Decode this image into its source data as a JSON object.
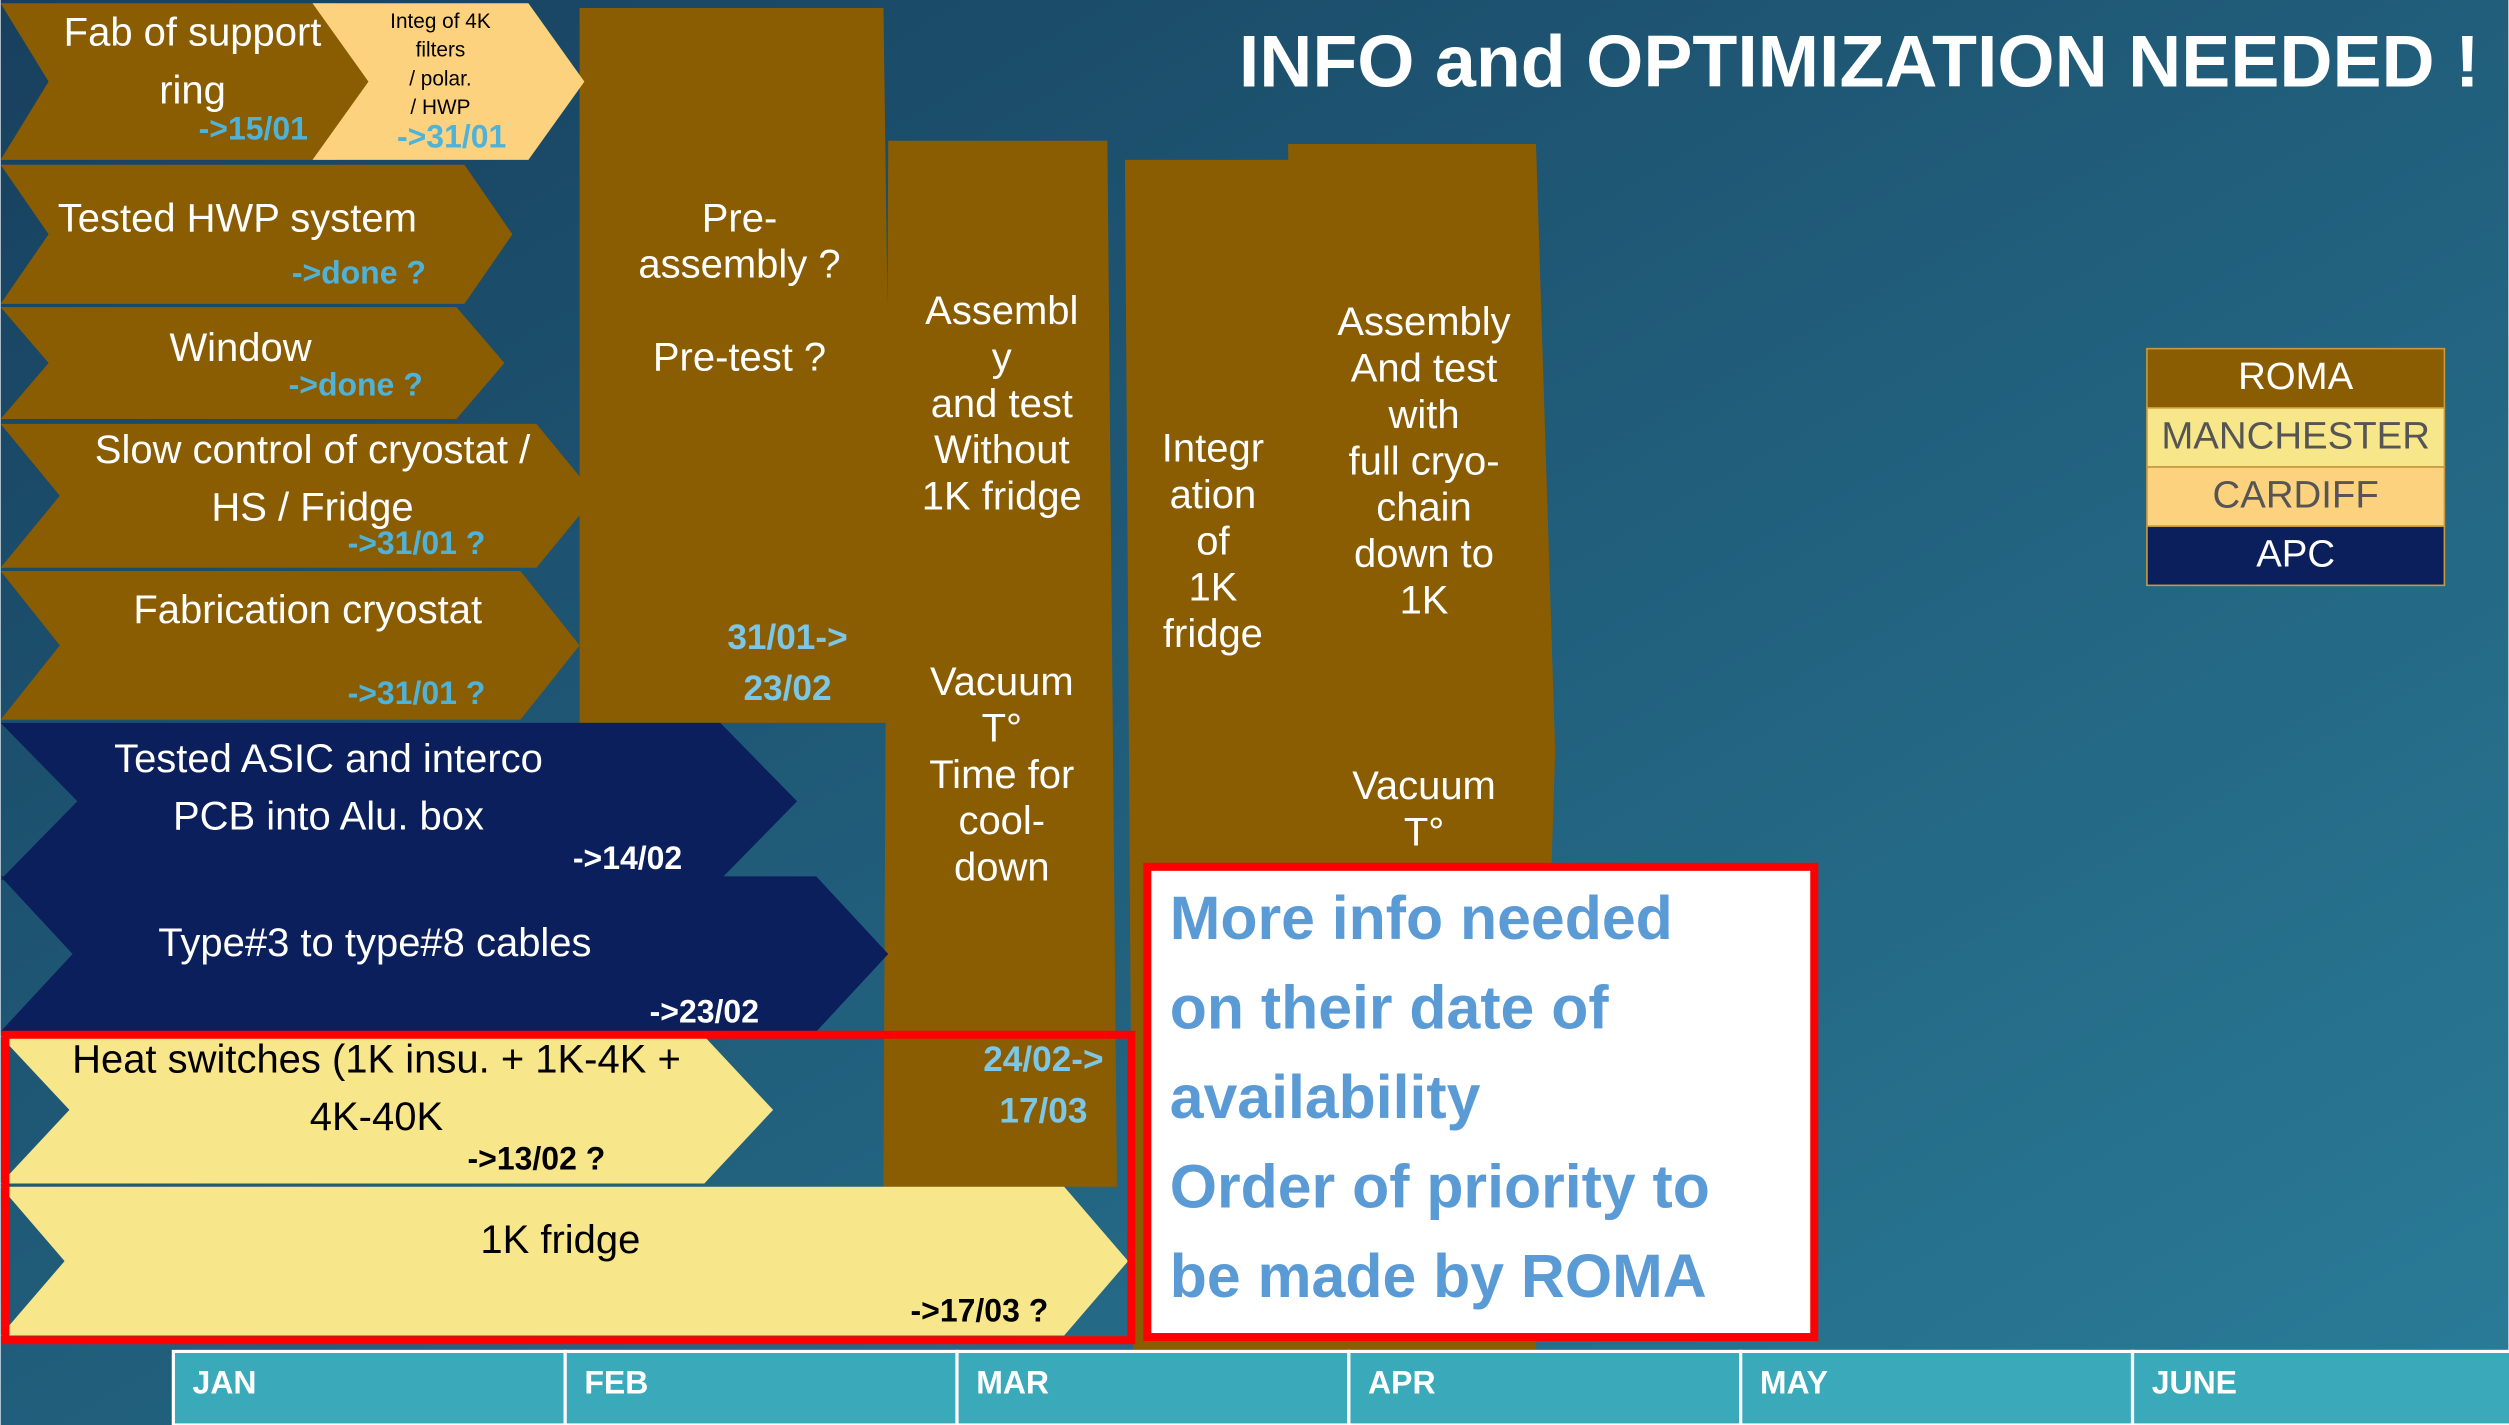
{
  "title": "INFO and OPTIMIZATION NEEDED !",
  "tasks": [
    {
      "lines": [
        "Fab of support",
        "ring"
      ],
      "date": "->15/01",
      "color": "#8a5d02"
    },
    {
      "lines": [
        "Integ of 4K",
        "filters",
        "/ polar.",
        "/ HWP"
      ],
      "date": "->31/01",
      "color": "#fdd27f"
    },
    {
      "lines": [
        "Tested HWP system"
      ],
      "date": "->done ?",
      "color": "#8a5d02"
    },
    {
      "lines": [
        "Window"
      ],
      "date": "->done ?",
      "color": "#8a5d02"
    },
    {
      "lines": [
        "Slow control of cryostat /",
        "HS / Fridge"
      ],
      "date": "->31/01 ?",
      "color": "#8a5d02"
    },
    {
      "lines": [
        "Fabrication cryostat"
      ],
      "date": "->31/01 ?",
      "color": "#8a5d02"
    },
    {
      "lines": [
        "Tested ASIC and interco",
        "PCB into Alu. box"
      ],
      "date": "->14/02",
      "color": "#0b1f5c"
    },
    {
      "lines": [
        "Type#3 to type#8 cables"
      ],
      "date": "->23/02",
      "color": "#0b1f5c"
    },
    {
      "lines": [
        "Heat switches (1K insu. + 1K-4K +",
        "4K-40K"
      ],
      "date": "->13/02 ?",
      "color": "#f8e68a"
    },
    {
      "lines": [
        "1K fridge"
      ],
      "date": "->17/03 ?",
      "color": "#f8e68a"
    }
  ],
  "phases": [
    {
      "lines": [
        "Pre-",
        "assembly ?",
        "",
        "Pre-test ?"
      ],
      "dates": [
        "31/01->",
        "23/02"
      ]
    },
    {
      "lines": [
        "Assembl",
        "y",
        "and test",
        "Without",
        "1K fridge",
        "",
        "",
        "",
        "Vacuum",
        "T°",
        "Time for",
        "cool-",
        "down"
      ],
      "dates": [
        "24/02->",
        "17/03"
      ]
    },
    {
      "lines": [
        "Integr",
        "ation",
        "of",
        "1K",
        "fridge"
      ],
      "dates": []
    },
    {
      "lines": [
        "Assembly",
        "And test",
        "with",
        "full cryo-",
        "chain",
        "down to",
        "1K",
        "",
        "",
        "",
        "Vacuum",
        "T°"
      ],
      "dates": []
    }
  ],
  "callout": [
    "More info needed",
    "on their date of",
    "availability",
    "Order of priority to",
    "be made by ROMA"
  ],
  "legend": [
    {
      "name": "ROMA",
      "color": "#8a5d02"
    },
    {
      "name": "MANCHESTER",
      "color": "#f8e68a"
    },
    {
      "name": "CARDIFF",
      "color": "#fdd27f"
    },
    {
      "name": "APC",
      "color": "#0b1f5c"
    }
  ],
  "months": [
    "JAN",
    "FEB",
    "MAR",
    "APR",
    "MAY",
    "JUNE"
  ]
}
